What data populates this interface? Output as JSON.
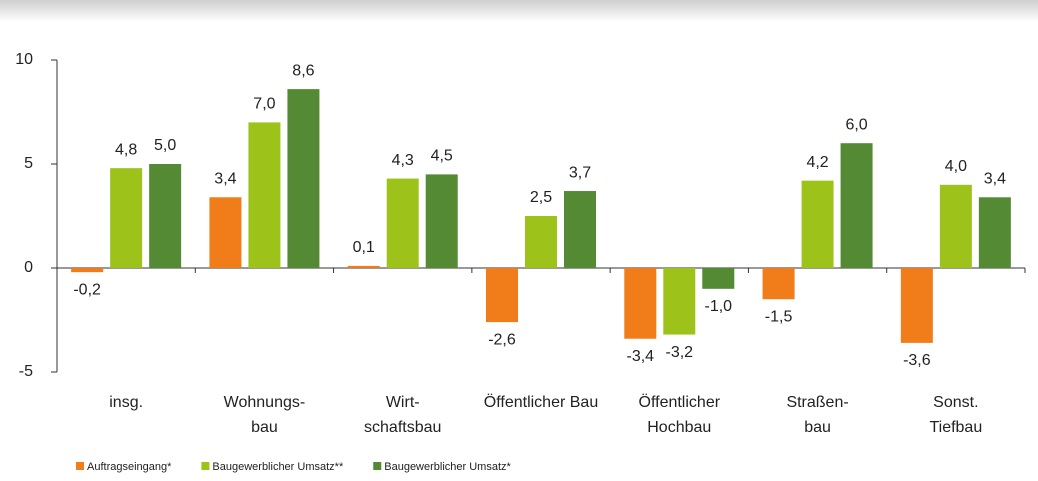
{
  "chart_data": {
    "type": "bar",
    "categories": [
      "insg.",
      "Wohnungs-\nbau",
      "Wirt-\nschaftsbau",
      "Öffentlicher Bau",
      "Öffentlicher\nHochbau",
      "Straßen-\nbau",
      "Sonst.\nTiefbau"
    ],
    "series": [
      {
        "name": "Auftragseingang*",
        "color": "#f07d1a",
        "values": [
          -0.2,
          3.4,
          0.1,
          -2.6,
          -3.4,
          -1.5,
          -3.6
        ],
        "value_labels": [
          "-0,2",
          "3,4",
          "0,1",
          "-2,6",
          "-3,4",
          "-1,5",
          "-3,6"
        ]
      },
      {
        "name": "Baugewerblicher Umsatz**",
        "color": "#9dc31b",
        "values": [
          4.8,
          7.0,
          4.3,
          2.5,
          -3.2,
          4.2,
          4.0
        ],
        "value_labels": [
          "4,8",
          "7,0",
          "4,3",
          "2,5",
          "-3,2",
          "4,2",
          "4,0"
        ]
      },
      {
        "name": "Baugewerblicher Umsatz*",
        "color": "#548a34",
        "values": [
          5.0,
          8.6,
          4.5,
          3.7,
          -1.0,
          6.0,
          3.4
        ],
        "value_labels": [
          "5,0",
          "8,6",
          "4,5",
          "3,7",
          "-1,0",
          "6,0",
          "3,4"
        ]
      }
    ],
    "ylim": [
      -5,
      10
    ],
    "yticks": [
      -5,
      0,
      5,
      10
    ]
  }
}
